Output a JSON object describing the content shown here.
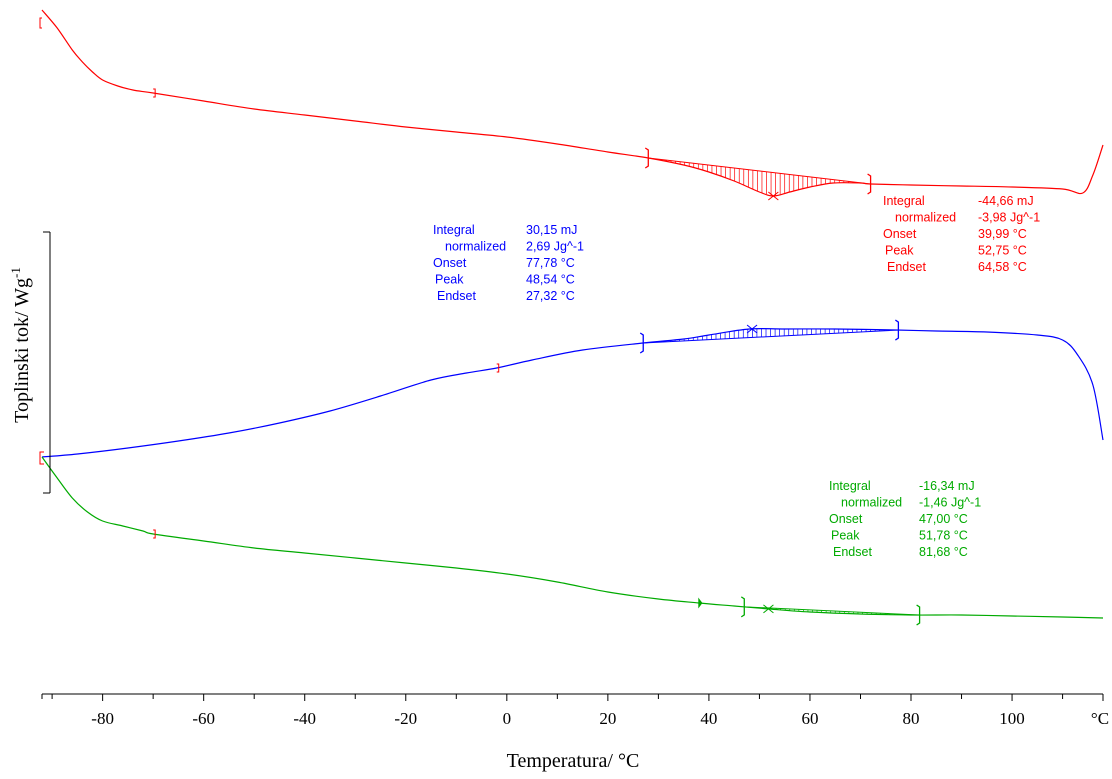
{
  "chart_data": {
    "type": "line",
    "xlabel": "Temperatura/ °C",
    "ylabel": "Toplinski tok/ Wg",
    "ylabel_sup": "-1",
    "x_unit": "°C",
    "xlim": [
      -92,
      118
    ],
    "x_ticks": [
      -80,
      -60,
      -40,
      -20,
      0,
      20,
      40,
      60,
      80,
      100
    ],
    "x_tick_labels": [
      "-80",
      "-60",
      "-40",
      "-20",
      "0",
      "20",
      "40",
      "60",
      "80",
      "100"
    ],
    "y_scale_bar": "unlabeled vertical scale bar on left edge",
    "grid": false,
    "series": [
      {
        "color": "#ff0000",
        "x": [
          -92,
          -89,
          -86,
          -84,
          -82,
          -80,
          -77,
          -74,
          -70,
          -60,
          -50,
          -40,
          -30,
          -20,
          -10,
          0,
          10,
          20,
          28,
          35,
          40,
          45,
          50,
          52.75,
          56,
          60,
          64.58,
          70,
          72,
          80,
          90,
          100,
          110,
          114,
          116,
          118
        ],
        "y": [
          10,
          28,
          50,
          62,
          72,
          80,
          86,
          90,
          93,
          101,
          109,
          115,
          121,
          127,
          132,
          137,
          144,
          152,
          158,
          165,
          172,
          181,
          192,
          196,
          192,
          187,
          183,
          183,
          184,
          185,
          186,
          187,
          189,
          193,
          175,
          145
        ],
        "peak": {
          "labels": [
            "Integral",
            "normalized",
            "Onset",
            "Peak",
            "Endset"
          ],
          "values": [
            "-44,66 mJ",
            "-3,98 Jg^-1",
            "39,99 °C",
            "52,75 °C",
            "64,58 °C"
          ]
        }
      },
      {
        "color": "#0000ff",
        "x": [
          -92,
          -85,
          -75,
          -65,
          -55,
          -45,
          -35,
          -25,
          -15,
          -8,
          -2,
          5,
          15,
          27,
          35,
          40,
          48,
          55,
          65,
          77,
          85,
          95,
          105,
          110,
          113,
          116,
          118
        ],
        "y": [
          457,
          454,
          448,
          441,
          433,
          423,
          411,
          396,
          380,
          373,
          368,
          360,
          350,
          343,
          339,
          335,
          329,
          329,
          329,
          330,
          331,
          332,
          335,
          340,
          355,
          385,
          440
        ],
        "peak": {
          "labels": [
            "Integral",
            "normalized",
            "Onset",
            "Peak",
            "Endset"
          ],
          "values": [
            "30,15 mJ",
            "2,69 Jg^-1",
            "77,78 °C",
            "48,54 °C",
            "27,32 °C"
          ]
        }
      },
      {
        "color": "#00aa00",
        "x": [
          -92,
          -89,
          -86,
          -83,
          -80,
          -76,
          -72,
          -70,
          -60,
          -50,
          -40,
          -30,
          -20,
          -10,
          0,
          10,
          20,
          30,
          38,
          45,
          52,
          60,
          70,
          80,
          90,
          100,
          110,
          118
        ],
        "y": [
          457,
          478,
          498,
          512,
          521,
          526,
          531,
          534,
          541,
          548,
          553,
          558,
          563,
          568,
          574,
          582,
          592,
          599,
          603,
          606,
          609,
          612,
          614,
          615,
          615,
          616,
          617,
          618
        ],
        "peak": {
          "labels": [
            "Integral",
            "normalized",
            "Onset",
            "Peak",
            "Endset"
          ],
          "values": [
            "-16,34 mJ",
            "-1,46 Jg^-1",
            "47,00 °C",
            "51,78 °C",
            "81,68 °C"
          ]
        }
      }
    ]
  }
}
